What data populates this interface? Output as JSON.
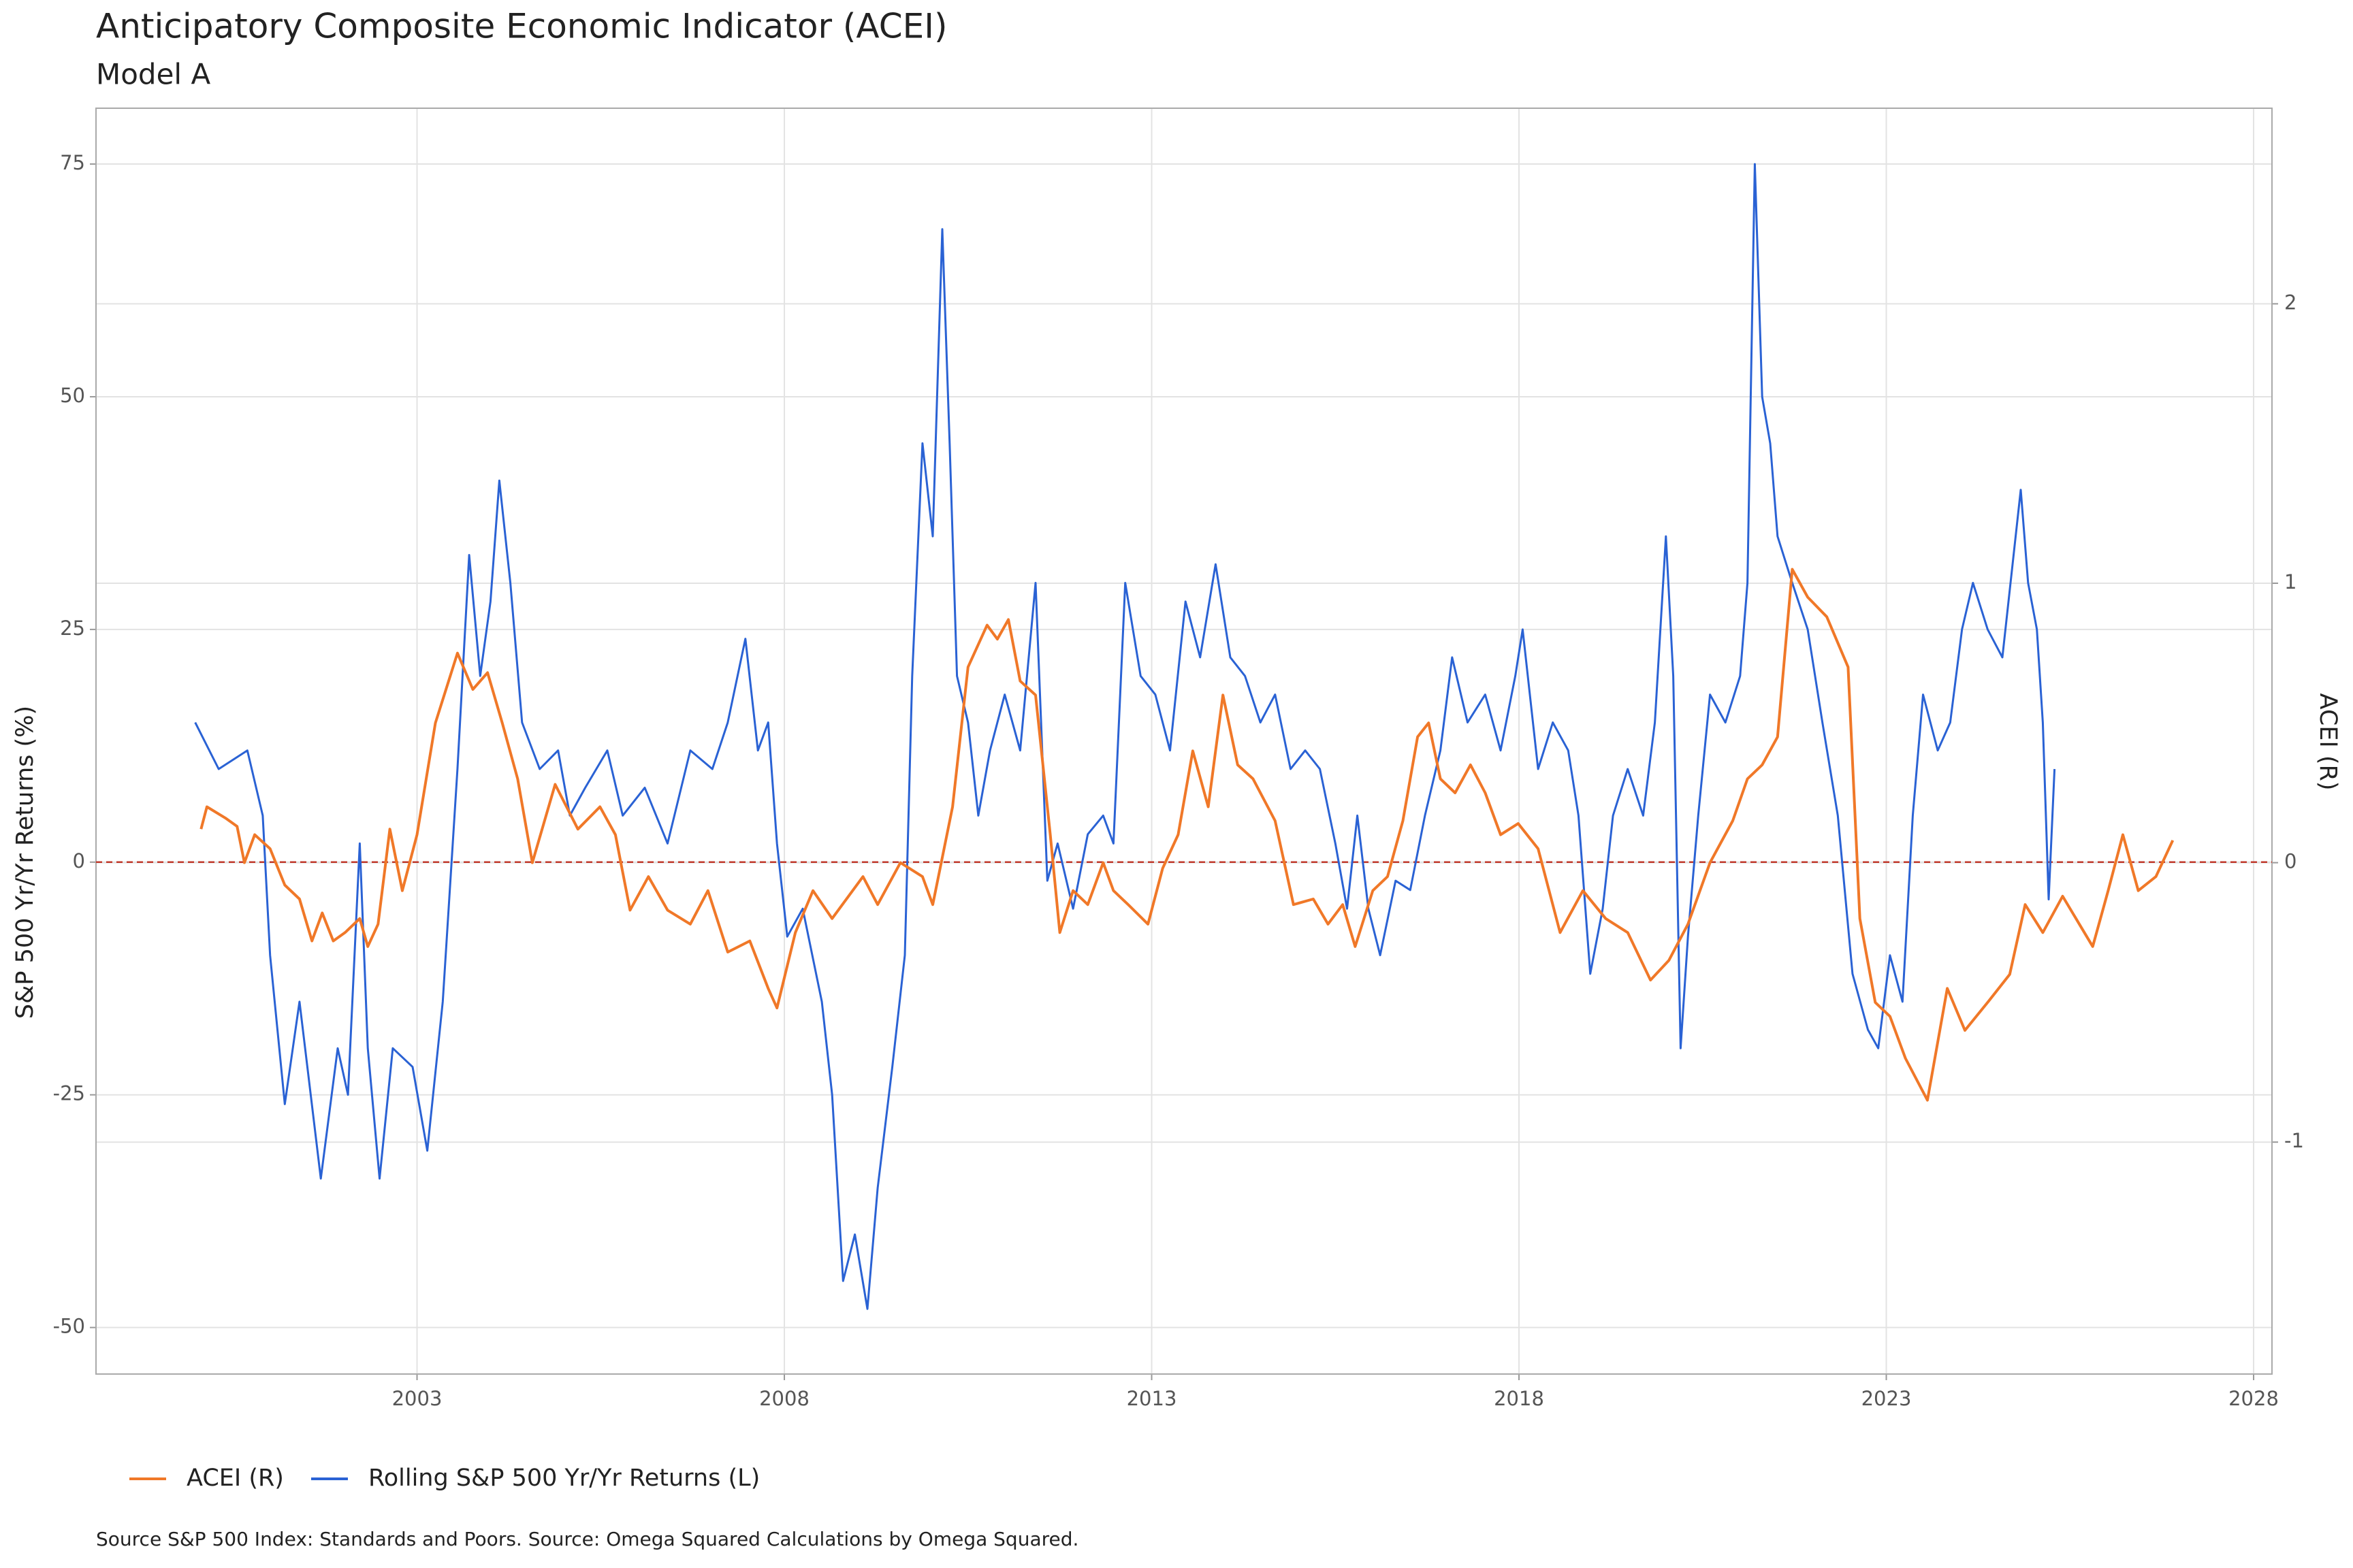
{
  "chart_data": {
    "type": "line",
    "title": "Anticipatory Composite Economic Indicator (ACEI)",
    "subtitle": "Model A",
    "y_label": "S&P 500 Yr/Yr Returns (%)",
    "y2_label": "ACEI (R)",
    "source": "Source S&P 500 Index: Standards and Poors. Source:  Omega Squared Calculations by Omega Squared.",
    "xlim": [
      1998.63,
      2028.25
    ],
    "xticks": [
      2003,
      2008,
      2013,
      2018,
      2023,
      2028
    ],
    "ylim": [
      -55,
      81
    ],
    "yticks": [
      -50,
      -25,
      0,
      25,
      50,
      75
    ],
    "y2lim": [
      -1.83,
      2.7
    ],
    "y2ticks": [
      -1,
      0,
      1,
      2
    ],
    "grid": true,
    "legend": "bottom-left",
    "reference_line": {
      "y": 0,
      "color": "#c0392b",
      "style": "dashed"
    },
    "series": [
      {
        "name": "ACEI (R)",
        "color": "#f07828",
        "axis": "y2",
        "x": [
          2000.06,
          2000.14,
          2000.39,
          2000.55,
          2000.65,
          2000.79,
          2001.0,
          2001.2,
          2001.4,
          2001.57,
          2001.71,
          2001.86,
          2002.02,
          2002.22,
          2002.33,
          2002.47,
          2002.63,
          2002.8,
          2003.0,
          2003.25,
          2003.55,
          2003.76,
          2003.96,
          2004.16,
          2004.37,
          2004.57,
          2004.88,
          2005.19,
          2005.49,
          2005.7,
          2005.9,
          2006.15,
          2006.41,
          2006.72,
          2006.96,
          2007.23,
          2007.53,
          2007.78,
          2007.9,
          2008.15,
          2008.39,
          2008.65,
          2009.07,
          2009.27,
          2009.58,
          2009.88,
          2010.02,
          2010.29,
          2010.5,
          2010.76,
          2010.9,
          2011.05,
          2011.21,
          2011.42,
          2011.62,
          2011.75,
          2011.93,
          2012.13,
          2012.34,
          2012.48,
          2012.68,
          2012.95,
          2013.15,
          2013.36,
          2013.56,
          2013.77,
          2013.97,
          2014.17,
          2014.38,
          2014.68,
          2014.93,
          2015.2,
          2015.4,
          2015.6,
          2015.77,
          2016.01,
          2016.21,
          2016.42,
          2016.62,
          2016.77,
          2016.93,
          2017.13,
          2017.34,
          2017.54,
          2017.75,
          2017.99,
          2018.26,
          2018.56,
          2018.87,
          2019.18,
          2019.48,
          2019.79,
          2020.04,
          2020.3,
          2020.6,
          2020.91,
          2021.11,
          2021.31,
          2021.52,
          2021.72,
          2021.93,
          2022.19,
          2022.48,
          2022.64,
          2022.85,
          2023.05,
          2023.26,
          2023.56,
          2023.83,
          2024.07,
          2024.38,
          2024.68,
          2024.89,
          2025.13,
          2025.4,
          2025.81,
          2026.02,
          2026.22,
          2026.43,
          2026.67,
          2026.9
        ],
        "values": [
          0.12,
          0.2,
          0.16,
          0.13,
          0.0,
          0.1,
          0.05,
          -0.08,
          -0.13,
          -0.28,
          -0.18,
          -0.28,
          -0.25,
          -0.2,
          -0.3,
          -0.22,
          0.12,
          -0.1,
          0.1,
          0.5,
          0.75,
          0.62,
          0.68,
          0.5,
          0.3,
          0.0,
          0.28,
          0.12,
          0.2,
          0.1,
          -0.17,
          -0.05,
          -0.17,
          -0.22,
          -0.1,
          -0.32,
          -0.28,
          -0.45,
          -0.52,
          -0.25,
          -0.1,
          -0.2,
          -0.05,
          -0.15,
          0.0,
          -0.05,
          -0.15,
          0.2,
          0.7,
          0.85,
          0.8,
          0.87,
          0.65,
          0.6,
          0.1,
          -0.25,
          -0.1,
          -0.15,
          0.0,
          -0.1,
          -0.15,
          -0.22,
          -0.02,
          0.1,
          0.4,
          0.2,
          0.6,
          0.35,
          0.3,
          0.15,
          -0.15,
          -0.13,
          -0.22,
          -0.15,
          -0.3,
          -0.1,
          -0.05,
          0.15,
          0.45,
          0.5,
          0.3,
          0.25,
          0.35,
          0.25,
          0.1,
          0.14,
          0.05,
          -0.25,
          -0.1,
          -0.2,
          -0.25,
          -0.42,
          -0.35,
          -0.22,
          0.0,
          0.15,
          0.3,
          0.35,
          0.45,
          1.05,
          0.95,
          0.88,
          0.7,
          -0.2,
          -0.5,
          -0.55,
          -0.7,
          -0.85,
          -0.45,
          -0.6,
          -0.5,
          -0.4,
          -0.15,
          -0.25,
          -0.12,
          -0.3,
          -0.1,
          0.1,
          -0.1,
          -0.05,
          0.08
        ]
      },
      {
        "name": "Rolling S&P 500 Yr/Yr Returns (L)",
        "color": "#2a62d4",
        "axis": "y",
        "x": [
          1999.98,
          2000.3,
          2000.69,
          2000.9,
          2001.0,
          2001.2,
          2001.4,
          2001.69,
          2001.92,
          2002.06,
          2002.22,
          2002.33,
          2002.49,
          2002.67,
          2002.94,
          2003.14,
          2003.35,
          2003.55,
          2003.71,
          2003.86,
          2004.0,
          2004.12,
          2004.27,
          2004.43,
          2004.67,
          2004.92,
          2005.08,
          2005.29,
          2005.59,
          2005.8,
          2006.1,
          2006.41,
          2006.72,
          2007.02,
          2007.23,
          2007.47,
          2007.64,
          2007.78,
          2007.9,
          2008.04,
          2008.25,
          2008.51,
          2008.65,
          2008.8,
          2008.96,
          2009.13,
          2009.27,
          2009.47,
          2009.64,
          2009.74,
          2009.88,
          2010.02,
          2010.15,
          2010.25,
          2010.35,
          2010.5,
          2010.64,
          2010.8,
          2011.0,
          2011.21,
          2011.42,
          2011.58,
          2011.72,
          2011.93,
          2012.13,
          2012.34,
          2012.48,
          2012.64,
          2012.85,
          2013.05,
          2013.25,
          2013.46,
          2013.66,
          2013.87,
          2014.07,
          2014.27,
          2014.48,
          2014.68,
          2014.89,
          2015.09,
          2015.29,
          2015.5,
          2015.66,
          2015.8,
          2015.95,
          2016.11,
          2016.32,
          2016.52,
          2016.72,
          2016.93,
          2017.09,
          2017.3,
          2017.54,
          2017.75,
          2017.95,
          2018.05,
          2018.26,
          2018.46,
          2018.67,
          2018.81,
          2018.97,
          2019.14,
          2019.28,
          2019.48,
          2019.69,
          2019.85,
          2020.0,
          2020.1,
          2020.2,
          2020.3,
          2020.44,
          2020.6,
          2020.81,
          2021.01,
          2021.11,
          2021.21,
          2021.31,
          2021.42,
          2021.52,
          2021.72,
          2021.93,
          2022.13,
          2022.34,
          2022.54,
          2022.75,
          2022.89,
          2023.05,
          2023.22,
          2023.36,
          2023.5,
          2023.7,
          2023.87,
          2024.03,
          2024.18,
          2024.38,
          2024.58,
          2024.83,
          2024.93,
          2025.05,
          2025.13,
          2025.21,
          2025.29
        ],
        "values": [
          15,
          10,
          12,
          5,
          -10,
          -26,
          -15,
          -34,
          -20,
          -25,
          2,
          -20,
          -34,
          -20,
          -22,
          -31,
          -15,
          10,
          33,
          20,
          28,
          41,
          30,
          15,
          10,
          12,
          5,
          8,
          12,
          5,
          8,
          2,
          12,
          10,
          15,
          24,
          12,
          15,
          2,
          -8,
          -5,
          -15,
          -25,
          -45,
          -40,
          -48,
          -35,
          -22,
          -10,
          20,
          45,
          35,
          68,
          45,
          20,
          15,
          5,
          12,
          18,
          12,
          30,
          -2,
          2,
          -5,
          3,
          5,
          2,
          30,
          20,
          18,
          12,
          28,
          22,
          32,
          22,
          20,
          15,
          18,
          10,
          12,
          10,
          2,
          -5,
          5,
          -5,
          -10,
          -2,
          -3,
          5,
          12,
          22,
          15,
          18,
          12,
          20,
          25,
          10,
          15,
          12,
          5,
          -12,
          -5,
          5,
          10,
          5,
          15,
          35,
          20,
          -20,
          -8,
          5,
          18,
          15,
          20,
          30,
          75,
          50,
          45,
          35,
          30,
          25,
          15,
          5,
          -12,
          -18,
          -20,
          -10,
          -15,
          5,
          18,
          12,
          15,
          25,
          30,
          25,
          22,
          40,
          30,
          25,
          15,
          -4,
          10
        ]
      }
    ]
  }
}
